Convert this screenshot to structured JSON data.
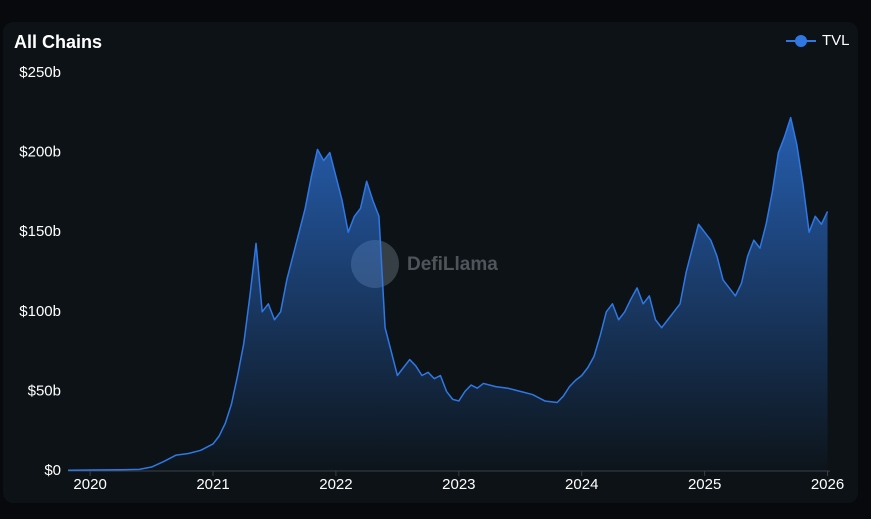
{
  "chart_data": {
    "type": "area",
    "title": "All Chains",
    "watermark": "DefiLlama",
    "x": [
      2019.82,
      2020.0,
      2020.25,
      2020.4,
      2020.5,
      2020.6,
      2020.7,
      2020.8,
      2020.9,
      2021.0,
      2021.05,
      2021.1,
      2021.15,
      2021.2,
      2021.25,
      2021.3,
      2021.35,
      2021.4,
      2021.45,
      2021.5,
      2021.55,
      2021.6,
      2021.65,
      2021.7,
      2021.75,
      2021.8,
      2021.85,
      2021.9,
      2021.95,
      2022.0,
      2022.05,
      2022.1,
      2022.15,
      2022.2,
      2022.25,
      2022.3,
      2022.35,
      2022.4,
      2022.45,
      2022.5,
      2022.55,
      2022.6,
      2022.65,
      2022.7,
      2022.75,
      2022.8,
      2022.85,
      2022.9,
      2022.95,
      2023.0,
      2023.05,
      2023.1,
      2023.15,
      2023.2,
      2023.3,
      2023.4,
      2023.5,
      2023.6,
      2023.7,
      2023.8,
      2023.85,
      2023.9,
      2023.95,
      2024.0,
      2024.05,
      2024.1,
      2024.15,
      2024.2,
      2024.25,
      2024.3,
      2024.35,
      2024.4,
      2024.45,
      2024.5,
      2024.55,
      2024.6,
      2024.65,
      2024.7,
      2024.75,
      2024.8,
      2024.85,
      2024.9,
      2024.95,
      2025.0,
      2025.05,
      2025.1,
      2025.15,
      2025.2,
      2025.25,
      2025.3,
      2025.35,
      2025.4,
      2025.45,
      2025.5,
      2025.55,
      2025.6,
      2025.65,
      2025.7,
      2025.75,
      2025.8,
      2025.85,
      2025.9,
      2025.95,
      2026.0
    ],
    "series": [
      {
        "name": "TVL",
        "color": "#2f78e4",
        "values": [
          0.5,
          0.6,
          0.8,
          1,
          2.5,
          6,
          10,
          11,
          13,
          17,
          22,
          30,
          42,
          60,
          80,
          110,
          143,
          100,
          105,
          95,
          100,
          120,
          135,
          150,
          165,
          185,
          202,
          195,
          200,
          185,
          170,
          150,
          160,
          165,
          182,
          170,
          160,
          90,
          75,
          60,
          65,
          70,
          66,
          60,
          62,
          58,
          60,
          50,
          45,
          44,
          50,
          54,
          52,
          55,
          53,
          52,
          50,
          48,
          44,
          43,
          47,
          53,
          57,
          60,
          65,
          72,
          85,
          100,
          105,
          95,
          100,
          108,
          115,
          105,
          110,
          95,
          90,
          95,
          100,
          105,
          125,
          140,
          155,
          150,
          145,
          135,
          120,
          115,
          110,
          118,
          135,
          145,
          140,
          155,
          175,
          200,
          210,
          222,
          205,
          180,
          150,
          160,
          155,
          163
        ]
      }
    ],
    "xlim": [
      2019.82,
      2026.02
    ],
    "xticks": [
      2020,
      2021,
      2022,
      2023,
      2024,
      2025,
      2026
    ],
    "ylim": [
      0,
      250
    ],
    "yticks": [
      {
        "value": 0,
        "label": "$0"
      },
      {
        "value": 50,
        "label": "$50b"
      },
      {
        "value": 100,
        "label": "$100b"
      },
      {
        "value": 150,
        "label": "$150b"
      },
      {
        "value": 200,
        "label": "$200b"
      },
      {
        "value": 250,
        "label": "$250b"
      }
    ],
    "legend": "top-right",
    "grid": false
  }
}
